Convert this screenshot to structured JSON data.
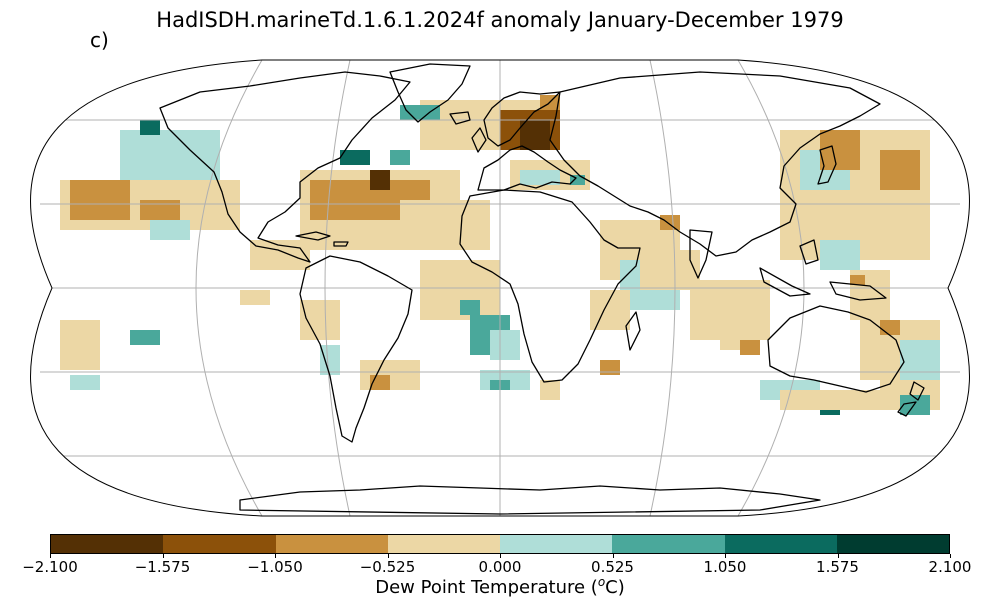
{
  "title": "HadISDH.marineTd.1.6.1.2024f anomaly January-December 1979",
  "panel_label": "c)",
  "colorbar": {
    "label_prefix": "Dew Point Temperature (",
    "label_unit": "o",
    "label_suffix": "C)",
    "ticks": [
      "−2.100",
      "−1.575",
      "−1.050",
      "−0.525",
      "0.000",
      "0.525",
      "1.050",
      "1.575",
      "2.100"
    ],
    "colors": [
      "#543005",
      "#8c510a",
      "#c9913f",
      "#ecd7a5",
      "#afded8",
      "#4aa89b",
      "#0b6b5f",
      "#003c30"
    ]
  },
  "map": {
    "projection": "Robinson",
    "gridlines": true,
    "ocean_color": "#ffffff",
    "coastline_color": "#000000"
  }
}
